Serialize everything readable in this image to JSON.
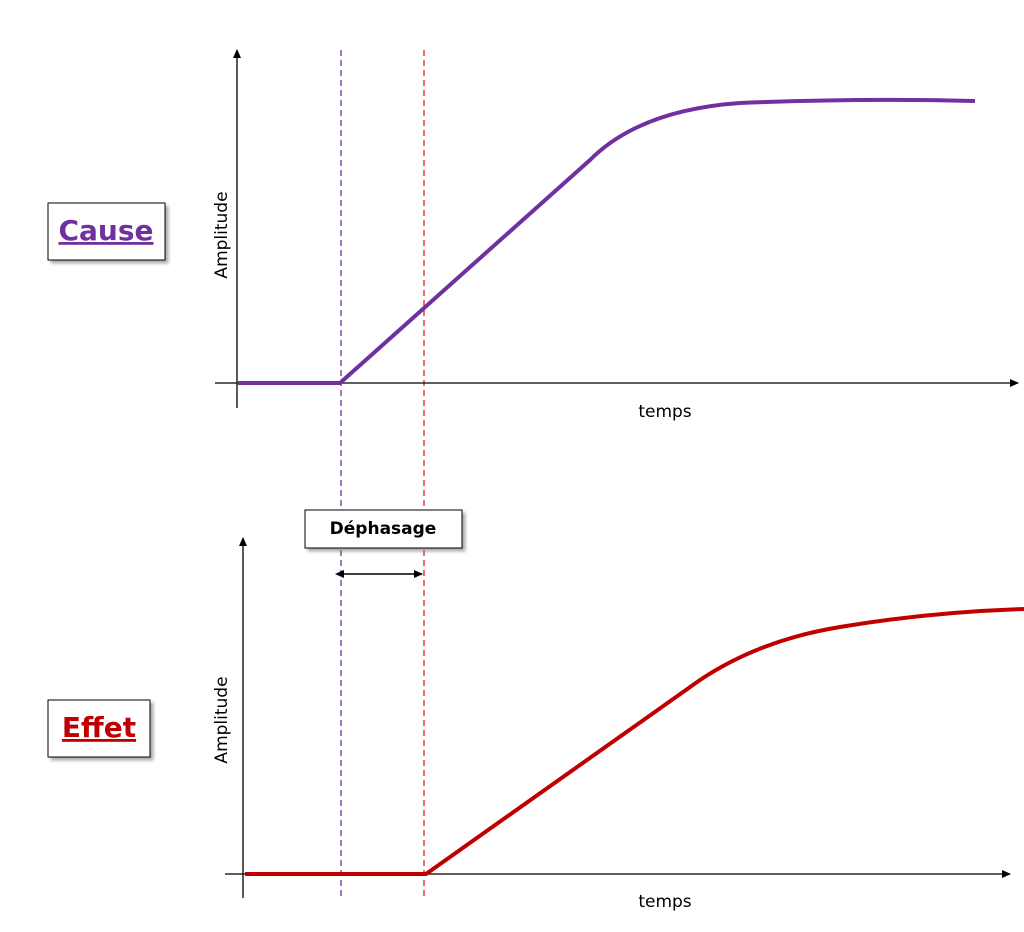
{
  "cause": {
    "label": "Cause",
    "y_axis_label": "Amplitude",
    "x_axis_label": "temps"
  },
  "effect": {
    "label": "Effet",
    "y_axis_label": "Amplitude",
    "x_axis_label": "temps"
  },
  "phase_shift": {
    "label": "Déphasage"
  }
}
